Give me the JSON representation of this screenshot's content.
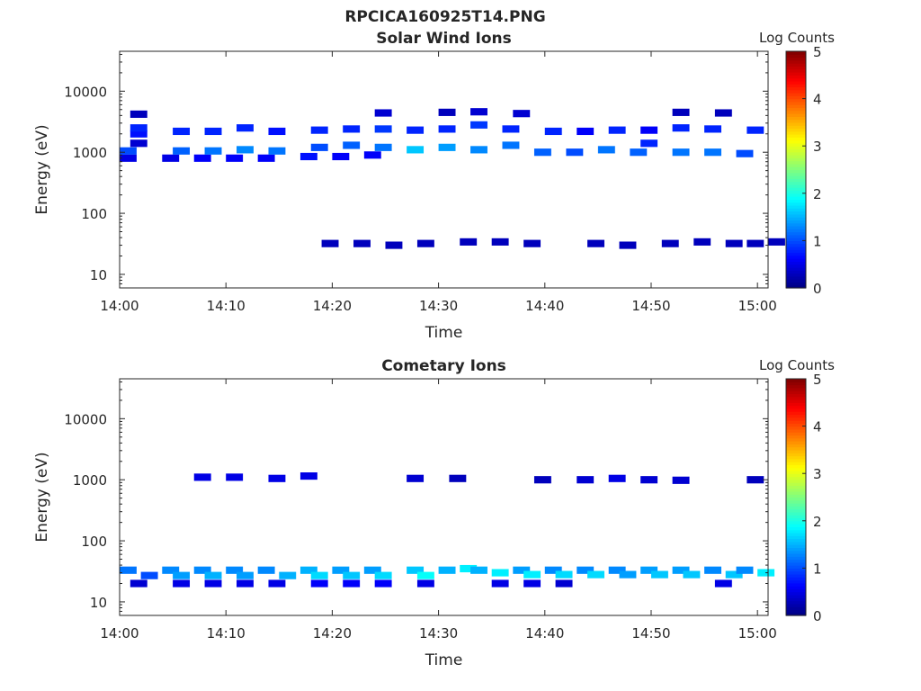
{
  "figure_title": "RPCICA160925T14.PNG",
  "colormap": {
    "stops": [
      "#00007f",
      "#0000ff",
      "#007fff",
      "#00ffff",
      "#7fff7f",
      "#ffff00",
      "#ff7f00",
      "#ff0000",
      "#7f0000"
    ]
  },
  "chart_data": [
    {
      "type": "heatmap",
      "title": "Solar Wind Ions",
      "xlabel": "Time",
      "ylabel": "Energy (eV)",
      "x_ticks": [
        "14:00",
        "14:10",
        "14:20",
        "14:30",
        "14:40",
        "14:50",
        "15:00"
      ],
      "y_ticks": [
        "10",
        "100",
        "1000",
        "10000"
      ],
      "y_scale": "log",
      "xlim": [
        "14:00",
        "15:01"
      ],
      "ylim": [
        6,
        45000
      ],
      "colorbar": {
        "label": "Log Counts",
        "ticks": [
          "0",
          "1",
          "2",
          "3",
          "4",
          "5"
        ],
        "range": [
          0,
          5
        ]
      },
      "cells": [
        [
          "14:00",
          800,
          0.5
        ],
        [
          "14:00",
          1050,
          1.0
        ],
        [
          "14:01",
          1400,
          0.4
        ],
        [
          "14:01",
          2000,
          0.7
        ],
        [
          "14:01",
          2500,
          0.8
        ],
        [
          "14:01",
          4200,
          0.3
        ],
        [
          "14:04",
          800,
          0.5
        ],
        [
          "14:05",
          1050,
          1.1
        ],
        [
          "14:05",
          2200,
          0.8
        ],
        [
          "14:07",
          800,
          0.6
        ],
        [
          "14:08",
          1050,
          1.2
        ],
        [
          "14:08",
          2200,
          0.8
        ],
        [
          "14:10",
          800,
          0.6
        ],
        [
          "14:11",
          1100,
          1.3
        ],
        [
          "14:11",
          2500,
          0.8
        ],
        [
          "14:13",
          800,
          0.6
        ],
        [
          "14:14",
          1050,
          1.2
        ],
        [
          "14:14",
          2200,
          0.7
        ],
        [
          "14:17",
          850,
          0.7
        ],
        [
          "14:18",
          1200,
          1.0
        ],
        [
          "14:18",
          2300,
          0.8
        ],
        [
          "14:19",
          32,
          0.3
        ],
        [
          "14:20",
          850,
          0.6
        ],
        [
          "14:21",
          1300,
          1.1
        ],
        [
          "14:21",
          2400,
          0.8
        ],
        [
          "14:22",
          32,
          0.3
        ],
        [
          "14:23",
          900,
          0.6
        ],
        [
          "14:24",
          1200,
          1.2
        ],
        [
          "14:24",
          2400,
          0.9
        ],
        [
          "14:24",
          4400,
          0.4
        ],
        [
          "14:25",
          30,
          0.3
        ],
        [
          "14:27",
          1100,
          1.6
        ],
        [
          "14:27",
          2300,
          0.8
        ],
        [
          "14:28",
          32,
          0.3
        ],
        [
          "14:30",
          1200,
          1.4
        ],
        [
          "14:30",
          2400,
          0.8
        ],
        [
          "14:30",
          4500,
          0.3
        ],
        [
          "14:32",
          34,
          0.3
        ],
        [
          "14:33",
          1100,
          1.3
        ],
        [
          "14:33",
          2800,
          0.9
        ],
        [
          "14:33",
          4600,
          0.4
        ],
        [
          "14:35",
          34,
          0.3
        ],
        [
          "14:36",
          1300,
          1.2
        ],
        [
          "14:36",
          2400,
          0.8
        ],
        [
          "14:37",
          4300,
          0.4
        ],
        [
          "14:38",
          32,
          0.3
        ],
        [
          "14:39",
          1000,
          1.1
        ],
        [
          "14:40",
          2200,
          0.8
        ],
        [
          "14:42",
          1000,
          1.0
        ],
        [
          "14:43",
          2200,
          0.6
        ],
        [
          "14:44",
          32,
          0.3
        ],
        [
          "14:45",
          1100,
          1.2
        ],
        [
          "14:46",
          2300,
          0.8
        ],
        [
          "14:47",
          30,
          0.3
        ],
        [
          "14:48",
          1000,
          1.1
        ],
        [
          "14:49",
          1400,
          0.8
        ],
        [
          "14:49",
          2300,
          0.6
        ],
        [
          "14:51",
          32,
          0.3
        ],
        [
          "14:52",
          1000,
          1.2
        ],
        [
          "14:52",
          2500,
          0.8
        ],
        [
          "14:52",
          4500,
          0.3
        ],
        [
          "14:54",
          34,
          0.3
        ],
        [
          "14:55",
          1000,
          1.2
        ],
        [
          "14:55",
          2400,
          0.8
        ],
        [
          "14:56",
          4400,
          0.3
        ],
        [
          "14:57",
          32,
          0.3
        ],
        [
          "14:58",
          950,
          1.0
        ],
        [
          "14:59",
          2300,
          0.8
        ],
        [
          "14:59",
          32,
          0.3
        ],
        [
          "15:01",
          34,
          0.3
        ]
      ]
    },
    {
      "type": "heatmap",
      "title": "Cometary Ions",
      "xlabel": "Time",
      "ylabel": "Energy (eV)",
      "x_ticks": [
        "14:00",
        "14:10",
        "14:20",
        "14:30",
        "14:40",
        "14:50",
        "15:00"
      ],
      "y_ticks": [
        "10",
        "100",
        "1000",
        "10000"
      ],
      "y_scale": "log",
      "xlim": [
        "14:00",
        "15:01"
      ],
      "ylim": [
        6,
        45000
      ],
      "colorbar": {
        "label": "Log Counts",
        "ticks": [
          "0",
          "1",
          "2",
          "3",
          "4",
          "5"
        ],
        "range": [
          0,
          5
        ]
      },
      "cells": [
        [
          "14:00",
          33,
          1.2
        ],
        [
          "14:02",
          27,
          1.0
        ],
        [
          "14:01",
          20,
          0.4
        ],
        [
          "14:04",
          33,
          1.3
        ],
        [
          "14:05",
          27,
          1.4
        ],
        [
          "14:05",
          20,
          0.5
        ],
        [
          "14:07",
          33,
          1.3
        ],
        [
          "14:08",
          27,
          1.5
        ],
        [
          "14:08",
          20,
          0.5
        ],
        [
          "14:07",
          1100,
          0.5
        ],
        [
          "14:10",
          33,
          1.3
        ],
        [
          "14:11",
          27,
          1.4
        ],
        [
          "14:11",
          20,
          0.5
        ],
        [
          "14:10",
          1100,
          0.5
        ],
        [
          "14:13",
          33,
          1.3
        ],
        [
          "14:15",
          27,
          1.5
        ],
        [
          "14:14",
          20,
          0.5
        ],
        [
          "14:14",
          1050,
          0.5
        ],
        [
          "14:17",
          33,
          1.5
        ],
        [
          "14:18",
          27,
          1.7
        ],
        [
          "14:18",
          20,
          0.6
        ],
        [
          "14:17",
          1150,
          0.5
        ],
        [
          "14:20",
          33,
          1.4
        ],
        [
          "14:21",
          27,
          1.6
        ],
        [
          "14:21",
          20,
          0.6
        ],
        [
          "14:23",
          33,
          1.4
        ],
        [
          "14:24",
          27,
          1.7
        ],
        [
          "14:24",
          20,
          0.6
        ],
        [
          "14:27",
          33,
          1.6
        ],
        [
          "14:28",
          27,
          1.9
        ],
        [
          "14:28",
          20,
          0.5
        ],
        [
          "14:27",
          1050,
          0.4
        ],
        [
          "14:30",
          33,
          1.5
        ],
        [
          "14:32",
          35,
          1.8
        ],
        [
          "14:31",
          1050,
          0.3
        ],
        [
          "14:33",
          33,
          1.5
        ],
        [
          "14:35",
          30,
          1.8
        ],
        [
          "14:35",
          20,
          0.5
        ],
        [
          "14:37",
          33,
          1.4
        ],
        [
          "14:38",
          28,
          1.8
        ],
        [
          "14:38",
          20,
          0.5
        ],
        [
          "14:39",
          1000,
          0.3
        ],
        [
          "14:40",
          33,
          1.3
        ],
        [
          "14:41",
          28,
          1.7
        ],
        [
          "14:41",
          20,
          0.4
        ],
        [
          "14:43",
          1000,
          0.4
        ],
        [
          "14:43",
          33,
          1.3
        ],
        [
          "14:44",
          28,
          1.7
        ],
        [
          "14:46",
          33,
          1.3
        ],
        [
          "14:47",
          28,
          1.4
        ],
        [
          "14:46",
          1050,
          0.5
        ],
        [
          "14:49",
          33,
          1.4
        ],
        [
          "14:50",
          28,
          1.6
        ],
        [
          "14:49",
          1000,
          0.4
        ],
        [
          "14:52",
          33,
          1.4
        ],
        [
          "14:53",
          28,
          1.6
        ],
        [
          "14:52",
          980,
          0.4
        ],
        [
          "14:55",
          33,
          1.3
        ],
        [
          "14:57",
          28,
          1.6
        ],
        [
          "14:56",
          20,
          0.5
        ],
        [
          "14:58",
          33,
          1.3
        ],
        [
          "15:00",
          30,
          1.8
        ],
        [
          "14:59",
          1000,
          0.3
        ]
      ]
    }
  ]
}
